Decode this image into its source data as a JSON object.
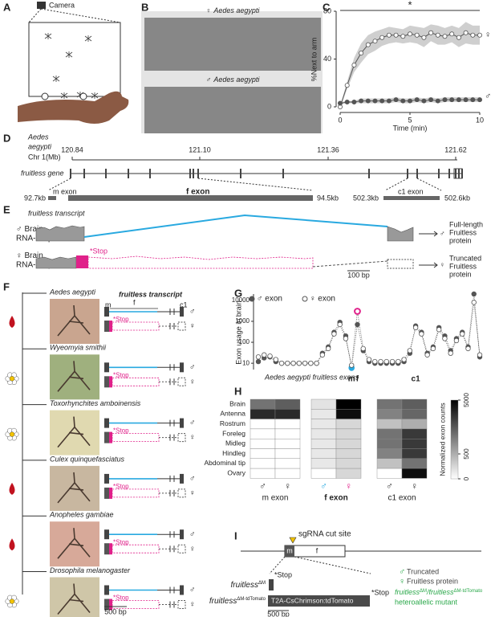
{
  "panel_labels": [
    "A",
    "B",
    "C",
    "D",
    "E",
    "F",
    "G",
    "H",
    "I"
  ],
  "panel_a": {
    "camera": "Camera"
  },
  "panel_b": {
    "photos": [
      {
        "sex": "♀",
        "species": "Aedes aegypti"
      },
      {
        "sex": "♂",
        "species": "Aedes aegypti"
      }
    ]
  },
  "chart_data": [
    {
      "type": "line",
      "y_label": "%Next to arm",
      "x_label": "Time (min)",
      "annotation": "*",
      "x": [
        0,
        0.5,
        1,
        1.5,
        2,
        2.5,
        3,
        3.5,
        4,
        4.5,
        5,
        5.5,
        6,
        6.5,
        7,
        7.5,
        8,
        8.5,
        9,
        9.5,
        10
      ],
      "series": [
        {
          "name": "♀",
          "color": "#555555",
          "marker": "open",
          "band_color": "#cfcfcf",
          "values": [
            0,
            18,
            35,
            45,
            52,
            55,
            58,
            60,
            60,
            59,
            61,
            60,
            58,
            62,
            60,
            59,
            61,
            58,
            62,
            60,
            60
          ],
          "errors": [
            1,
            3,
            6,
            8,
            8,
            8,
            7,
            7,
            6,
            6,
            7,
            7,
            8,
            7,
            8,
            7,
            7,
            8,
            9,
            8,
            8
          ]
        },
        {
          "name": "♂",
          "color": "#555555",
          "marker": "filled",
          "band_color": "#cfcfcf",
          "values": [
            3,
            4,
            4,
            5,
            5,
            5,
            5,
            5,
            6,
            5,
            5,
            6,
            5,
            6,
            5,
            6,
            6,
            6,
            6,
            6,
            6
          ],
          "errors": [
            1,
            1,
            1,
            2,
            2,
            2,
            2,
            2,
            2,
            2,
            2,
            2,
            2,
            2,
            2,
            2,
            2,
            2,
            2,
            2,
            2
          ]
        }
      ],
      "xlim": [
        0,
        10
      ],
      "ylim": [
        0,
        80
      ],
      "xticks": [
        0,
        5,
        10
      ],
      "yticks": [
        0,
        40,
        80
      ]
    },
    {
      "type": "line",
      "log_scale": true,
      "y_label": "Exon usage in brain",
      "x_label": "Aedes aegypti fruitless exons",
      "categories": [
        null,
        null,
        null,
        null,
        null,
        null,
        null,
        null,
        null,
        null,
        null,
        null,
        null,
        null,
        null,
        null,
        "m",
        "f",
        null,
        null,
        null,
        null,
        null,
        null,
        null,
        null,
        null,
        "c1",
        null,
        null,
        null,
        null,
        null,
        null,
        null,
        null,
        null,
        null,
        null
      ],
      "series": [
        {
          "name": "♂ exon",
          "color": "#555555",
          "marker": "filled",
          "highlight_color": "#29a9e0",
          "values": [
            12,
            18,
            20,
            12,
            10,
            10,
            10,
            10,
            10,
            10,
            10,
            30,
            60,
            300,
            900,
            200,
            6,
            700,
            40,
            12,
            10,
            10,
            10,
            10,
            10,
            12,
            30,
            600,
            300,
            30,
            60,
            500,
            200,
            40,
            150,
            300,
            60,
            20000,
            20
          ]
        },
        {
          "name": "♀ exon",
          "color": "#555555",
          "marker": "open",
          "highlight_color": "#e0218a",
          "values": [
            20,
            25,
            22,
            15,
            10,
            10,
            10,
            10,
            10,
            10,
            10,
            25,
            50,
            250,
            700,
            150,
            8,
            3000,
            50,
            15,
            12,
            12,
            12,
            12,
            12,
            15,
            40,
            500,
            250,
            25,
            50,
            400,
            150,
            30,
            120,
            250,
            50,
            8000,
            25
          ]
        }
      ],
      "ylim": [
        5,
        20000
      ],
      "yticks": [
        10,
        100,
        1000,
        10000
      ]
    },
    {
      "type": "heatmap",
      "colorbar_label": "Normalized exon counts",
      "color_scale": "sqrt",
      "rows": [
        "Brain",
        "Antenna",
        "Rostrum",
        "Foreleg",
        "Midleg",
        "Hindleg",
        "Abdominal tip",
        "Ovary"
      ],
      "groups": [
        {
          "name": "m exon",
          "columns": [
            {
              "name": "♂",
              "color": "#333333",
              "values": [
                1500,
                3500,
                0,
                0,
                0,
                0,
                0,
                null
              ]
            },
            {
              "name": "♀",
              "color": "#333333",
              "values": [
                2000,
                3500,
                0,
                0,
                0,
                0,
                0,
                0
              ]
            }
          ]
        },
        {
          "name": "f exon",
          "columns": [
            {
              "name": "♂",
              "color": "#29a9e0",
              "values": [
                60,
                40,
                40,
                40,
                40,
                40,
                40,
                null
              ]
            },
            {
              "name": "♀",
              "color": "#e0218a",
              "values": [
                5000,
                4500,
                120,
                120,
                120,
                120,
                120,
                120
              ]
            }
          ]
        },
        {
          "name": "c1 exon",
          "columns": [
            {
              "name": "♂",
              "color": "#333333",
              "values": [
                1500,
                1200,
                300,
                1500,
                1500,
                1200,
                300,
                null
              ]
            },
            {
              "name": "♀",
              "color": "#333333",
              "values": [
                2000,
                1800,
                500,
                3000,
                3000,
                3000,
                1500,
                4500
              ]
            }
          ]
        }
      ],
      "zlim": [
        0,
        5000
      ],
      "zticks": [
        0,
        500,
        5000
      ]
    }
  ],
  "panel_d": {
    "species_lines": [
      "Aedes",
      "aegypti"
    ],
    "chromosome": "Chr 1(Mb)",
    "coordinates": [
      "120.84",
      "121.10",
      "121.36",
      "121.62"
    ],
    "gene": "fruitless gene",
    "zooms": [
      {
        "start": "92.7kb",
        "exons": [
          "m exon",
          "f exon"
        ],
        "end": "94.5kb"
      },
      {
        "start": "502.3kb",
        "exons": [
          "c1 exon"
        ],
        "end": "502.6kb"
      }
    ]
  },
  "panel_e": {
    "title": "fruitless transcript",
    "tracks": [
      {
        "sex": "♂",
        "label_lines": [
          "Brain",
          "RNA-Seq"
        ],
        "protein_sex": "♂",
        "protein_lines": [
          "Full-length",
          "Fruitless",
          "protein"
        ]
      },
      {
        "sex": "♀",
        "label_lines": [
          "Brain",
          "RNA-Seq"
        ],
        "stop": "*Stop",
        "protein_sex": "♀",
        "protein_lines": [
          "Truncated",
          "Fruitless",
          "protein"
        ]
      }
    ],
    "scale": "100 bp"
  },
  "panel_f": {
    "title": "fruitless transcript",
    "exon_labels": [
      "m",
      "f",
      "c1"
    ],
    "species": [
      "Aedes aegypti",
      "Wyeomyia smithii",
      "Toxorhynchites amboinensis",
      "Culex quinquefasciatus",
      "Anopheles gambiae",
      "Drosophila melanogaster"
    ],
    "stop": "*Stop",
    "sexes": [
      "♂",
      "♀"
    ],
    "scale": "500 bp"
  },
  "panel_i": {
    "cut_site": "sgRNA cut site",
    "exons": [
      "m",
      "f"
    ],
    "alleles": [
      {
        "name": "fruitless",
        "sup": "ΔM",
        "stop": "*Stop"
      },
      {
        "name": "fruitless",
        "sup": "ΔM-tdTomato",
        "insert": "T2A-CsChrimson:tdTomato",
        "stop": "*Stop"
      }
    ],
    "scale": "500 bp",
    "phenotype": [
      {
        "sex": "♂",
        "text": "Truncated"
      },
      {
        "sex": "♀",
        "text": "Fruitless protein"
      }
    ],
    "genotype": {
      "parts": [
        "fruitless",
        "ΔM",
        "/fruitless",
        "ΔM-tdTomato"
      ],
      "text": "heteroallelic mutant"
    }
  }
}
